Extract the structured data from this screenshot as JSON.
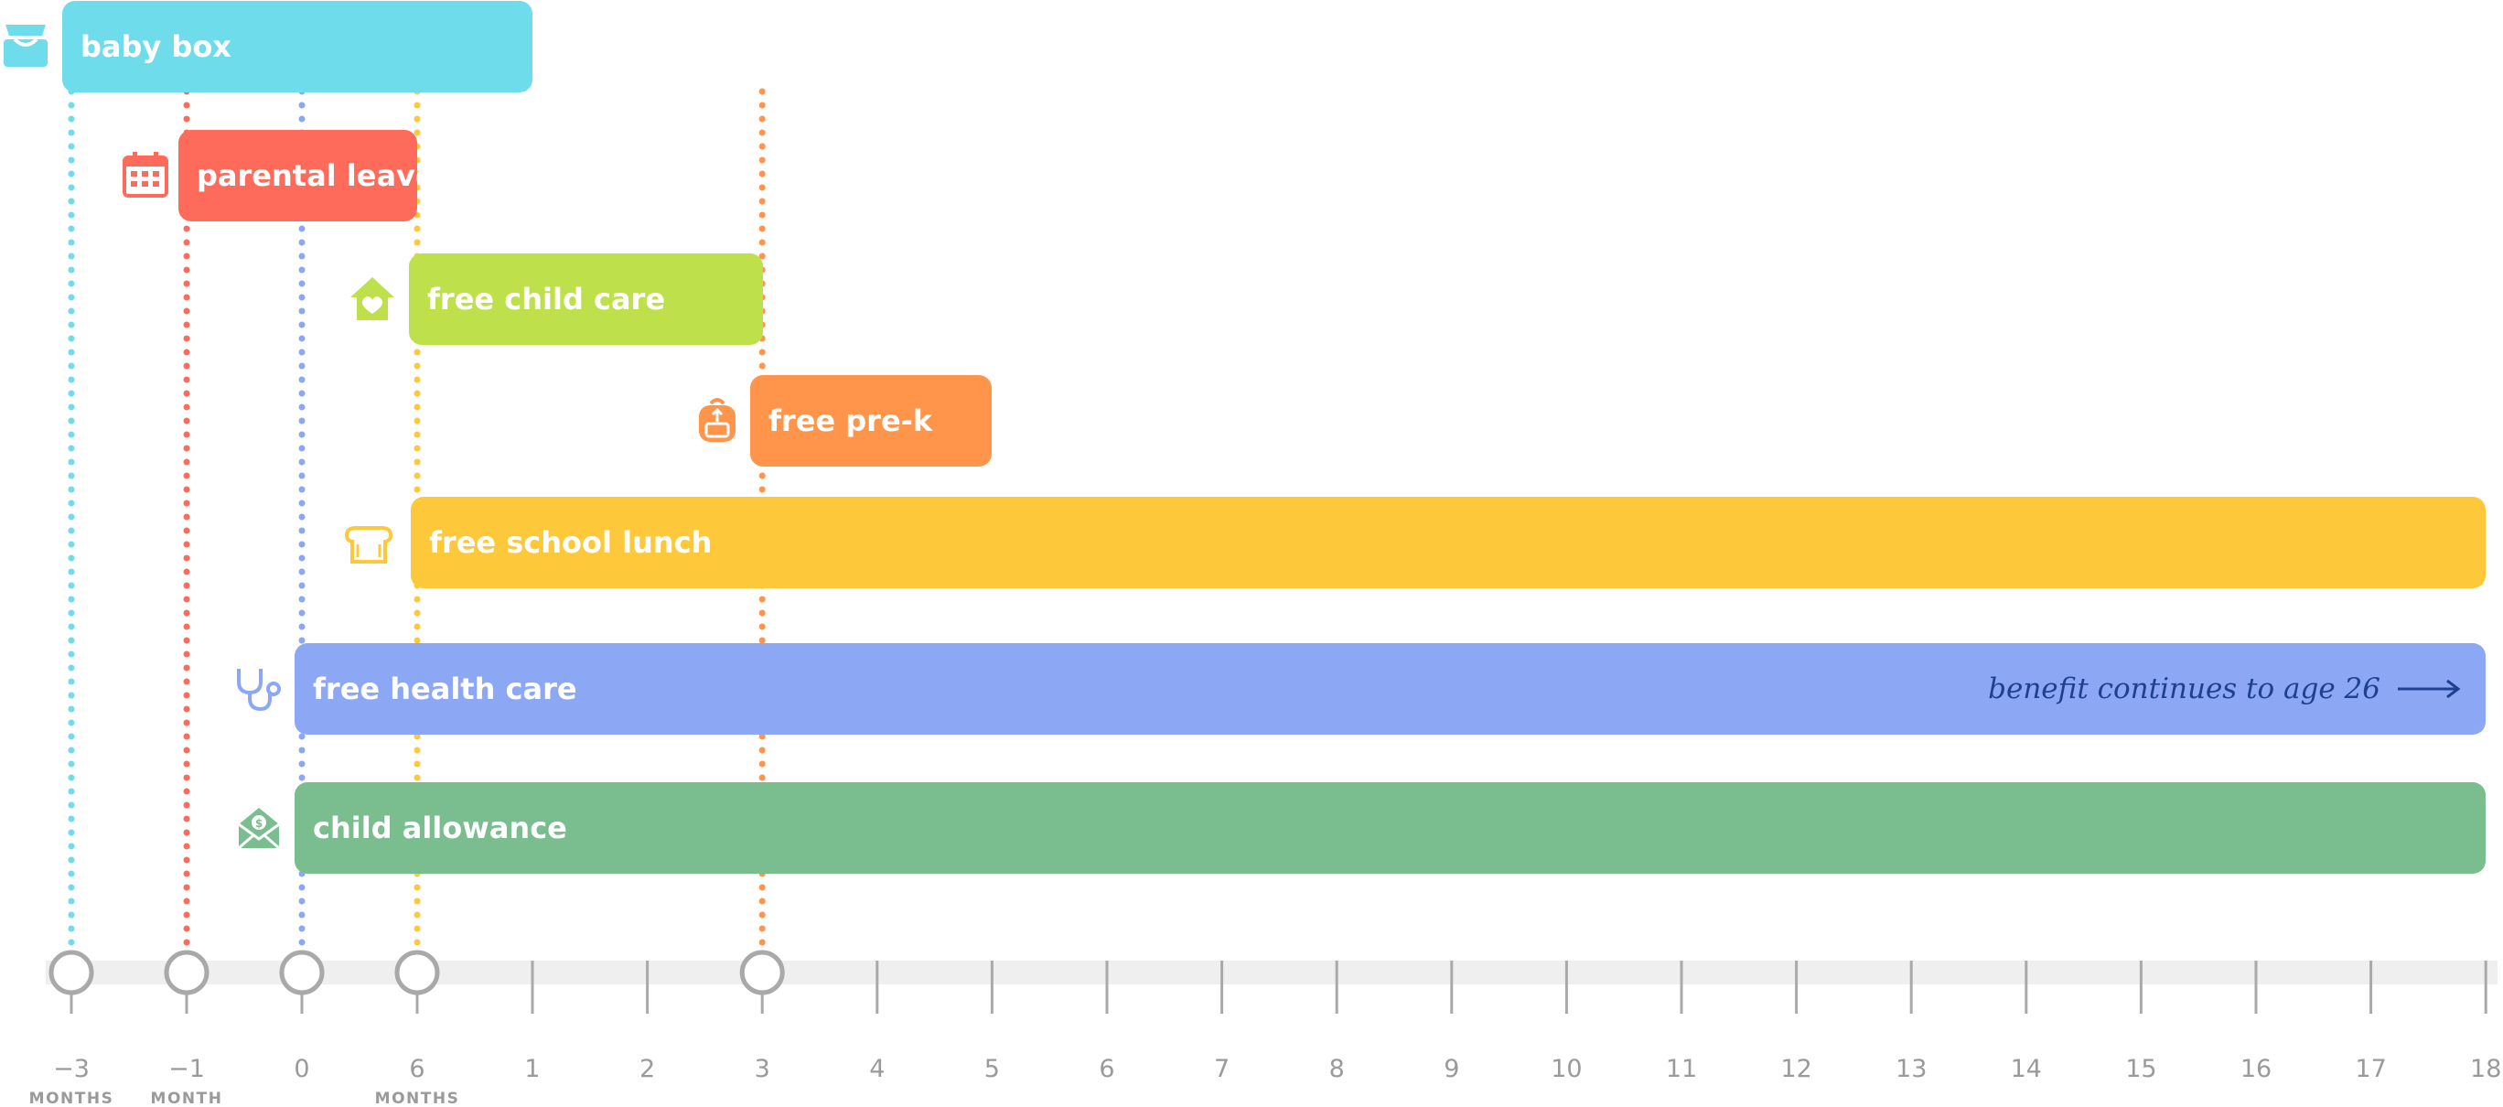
{
  "timeline": {
    "axis_ticks": [
      {
        "id": "m-3",
        "label": "−3",
        "unit": "MONTHS"
      },
      {
        "id": "m-1",
        "label": "−1",
        "unit": "MONTH"
      },
      {
        "id": "y0",
        "label": "0",
        "unit": ""
      },
      {
        "id": "m6",
        "label": "6",
        "unit": "MONTHS"
      },
      {
        "id": "y1",
        "label": "1",
        "unit": ""
      },
      {
        "id": "y2",
        "label": "2",
        "unit": ""
      },
      {
        "id": "y3",
        "label": "3",
        "unit": ""
      },
      {
        "id": "y4",
        "label": "4",
        "unit": ""
      },
      {
        "id": "y5",
        "label": "5",
        "unit": ""
      },
      {
        "id": "y6",
        "label": "6",
        "unit": ""
      },
      {
        "id": "y7",
        "label": "7",
        "unit": ""
      },
      {
        "id": "y8",
        "label": "8",
        "unit": ""
      },
      {
        "id": "y9",
        "label": "9",
        "unit": ""
      },
      {
        "id": "y10",
        "label": "10",
        "unit": ""
      },
      {
        "id": "y11",
        "label": "11",
        "unit": ""
      },
      {
        "id": "y12",
        "label": "12",
        "unit": ""
      },
      {
        "id": "y13",
        "label": "13",
        "unit": ""
      },
      {
        "id": "y14",
        "label": "14",
        "unit": ""
      },
      {
        "id": "y15",
        "label": "15",
        "unit": ""
      },
      {
        "id": "y16",
        "label": "16",
        "unit": ""
      },
      {
        "id": "y17",
        "label": "17",
        "unit": ""
      },
      {
        "id": "y18",
        "label": "18",
        "unit": ""
      }
    ],
    "milestones": [
      "m-3",
      "m-1",
      "y0",
      "m6",
      "y3"
    ],
    "benefits": [
      {
        "key": "baby-box",
        "label": "baby box",
        "icon": "baby-box-icon",
        "color": "#6fdcec",
        "start": "m-3",
        "end": "y1"
      },
      {
        "key": "parental-leave",
        "label": "parental leave",
        "icon": "calendar-icon",
        "color": "#ff6b5b",
        "start": "m-1",
        "end": "m6"
      },
      {
        "key": "free-child-care",
        "label": "free child care",
        "icon": "house-heart-icon",
        "color": "#bde04b",
        "start": "m6",
        "end": "y3"
      },
      {
        "key": "free-pre-k",
        "label": "free pre-k",
        "icon": "backpack-icon",
        "color": "#ff954a",
        "start": "y3",
        "end": "y5"
      },
      {
        "key": "free-school-lunch",
        "label": "free school lunch",
        "icon": "bread-icon",
        "color": "#fdc83a",
        "start": "m6",
        "end": "y18"
      },
      {
        "key": "free-health-care",
        "label": "free health care",
        "icon": "stethoscope-icon",
        "color": "#8ca8f5",
        "start": "y0",
        "end": "y18",
        "note": "benefit continues to age 26"
      },
      {
        "key": "child-allowance",
        "label": "child allowance",
        "icon": "money-envelope-icon",
        "color": "#7abd8e",
        "start": "y0",
        "end": "y18"
      }
    ],
    "dotted_lines": [
      {
        "tick": "m-3",
        "color": "#6fdcec"
      },
      {
        "tick": "m-1",
        "color": "#ff6b5b"
      },
      {
        "tick": "y0",
        "color": "#8ca8f5"
      },
      {
        "tick": "m6",
        "color": "#fdc83a"
      },
      {
        "tick": "y3",
        "color": "#ff954a"
      }
    ],
    "axis_color": "#a9a9a9",
    "track_color": "#efefef"
  }
}
